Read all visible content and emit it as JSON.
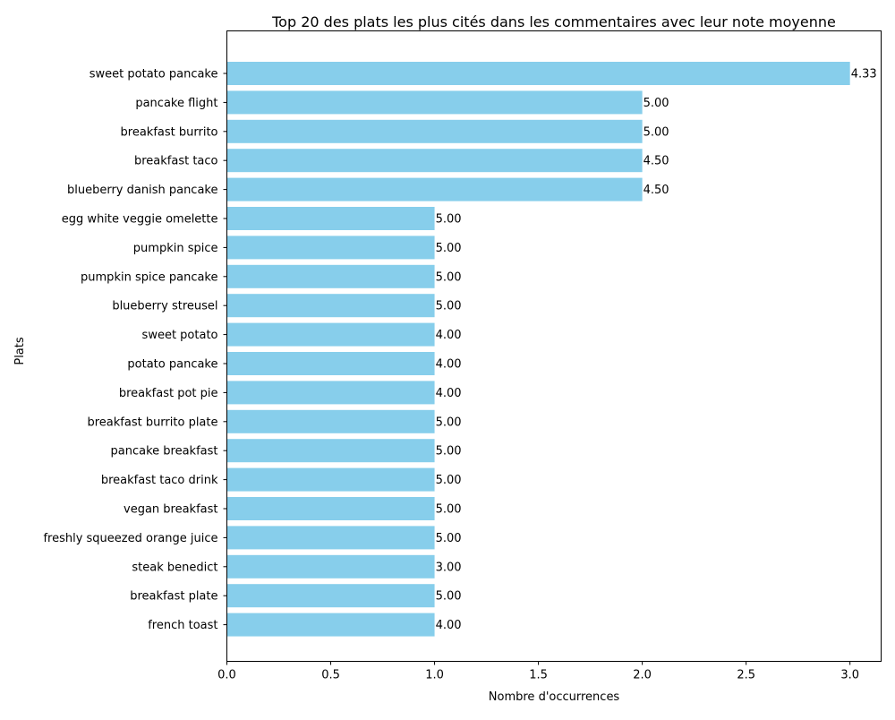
{
  "chart_data": {
    "type": "bar",
    "orientation": "horizontal",
    "title": "Top 20 des plats les plus cités dans les commentaires avec leur note moyenne",
    "xlabel": "Nombre d'occurrences",
    "ylabel": "Plats",
    "xlim": [
      0,
      3.15
    ],
    "xticks": [
      "0.0",
      "0.5",
      "1.0",
      "1.5",
      "2.0",
      "2.5",
      "3.0"
    ],
    "grid": false,
    "legend": "none",
    "bar_color": "#87CEEB",
    "categories": [
      "sweet potato pancake",
      "pancake flight",
      "breakfast burrito",
      "breakfast taco",
      "blueberry danish pancake",
      "egg white veggie omelette",
      "pumpkin spice",
      "pumpkin spice pancake",
      "blueberry streusel",
      "sweet potato",
      "potato pancake",
      "breakfast pot pie",
      "breakfast burrito plate",
      "pancake breakfast",
      "breakfast taco drink",
      "vegan breakfast",
      "freshly squeezed orange juice",
      "steak benedict",
      "breakfast plate",
      "french toast"
    ],
    "values": [
      3,
      2,
      2,
      2,
      2,
      1,
      1,
      1,
      1,
      1,
      1,
      1,
      1,
      1,
      1,
      1,
      1,
      1,
      1,
      1
    ],
    "bar_labels": [
      "4.33",
      "5.00",
      "5.00",
      "4.50",
      "4.50",
      "5.00",
      "5.00",
      "5.00",
      "5.00",
      "4.00",
      "4.00",
      "4.00",
      "5.00",
      "5.00",
      "5.00",
      "5.00",
      "5.00",
      "3.00",
      "5.00",
      "4.00"
    ]
  }
}
